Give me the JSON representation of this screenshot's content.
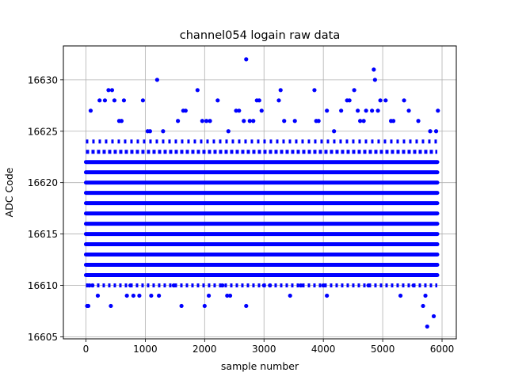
{
  "chart_data": {
    "type": "scatter",
    "title": "channel054 logain raw data",
    "xlabel": "sample number",
    "ylabel": "ADC Code",
    "xlim": [
      -380,
      6240
    ],
    "ylim": [
      16604.8,
      16633.3
    ],
    "xticks": [
      0,
      1000,
      2000,
      3000,
      4000,
      5000,
      6000
    ],
    "yticks": [
      16605,
      16610,
      16615,
      16620,
      16625,
      16630
    ],
    "grid": true,
    "marker_color": "#0000ff",
    "series": [
      {
        "points": [
          [
            20,
            16608
          ],
          [
            40,
            16608
          ],
          [
            60,
            16610
          ],
          [
            80,
            16627
          ],
          [
            110,
            16610
          ],
          [
            200,
            16609
          ],
          [
            230,
            16628
          ],
          [
            320,
            16628
          ],
          [
            380,
            16629
          ],
          [
            420,
            16608
          ],
          [
            440,
            16629
          ],
          [
            480,
            16628
          ],
          [
            560,
            16626
          ],
          [
            600,
            16626
          ],
          [
            640,
            16628
          ],
          [
            690,
            16609
          ],
          [
            750,
            16610
          ],
          [
            800,
            16609
          ],
          [
            900,
            16609
          ],
          [
            960,
            16628
          ],
          [
            1040,
            16625
          ],
          [
            1080,
            16625
          ],
          [
            1100,
            16609
          ],
          [
            1200,
            16630
          ],
          [
            1230,
            16609
          ],
          [
            1300,
            16625
          ],
          [
            1480,
            16610
          ],
          [
            1550,
            16626
          ],
          [
            1610,
            16608
          ],
          [
            1640,
            16627
          ],
          [
            1680,
            16627
          ],
          [
            1880,
            16629
          ],
          [
            1960,
            16626
          ],
          [
            2000,
            16608
          ],
          [
            2030,
            16626
          ],
          [
            2070,
            16609
          ],
          [
            2090,
            16626
          ],
          [
            2220,
            16628
          ],
          [
            2300,
            16610
          ],
          [
            2380,
            16609
          ],
          [
            2400,
            16625
          ],
          [
            2430,
            16609
          ],
          [
            2530,
            16627
          ],
          [
            2580,
            16627
          ],
          [
            2660,
            16626
          ],
          [
            2700,
            16608
          ],
          [
            2700,
            16632
          ],
          [
            2760,
            16626
          ],
          [
            2820,
            16626
          ],
          [
            2880,
            16628
          ],
          [
            2920,
            16628
          ],
          [
            2960,
            16627
          ],
          [
            3000,
            16610
          ],
          [
            3100,
            16610
          ],
          [
            3250,
            16628
          ],
          [
            3280,
            16629
          ],
          [
            3340,
            16626
          ],
          [
            3440,
            16609
          ],
          [
            3520,
            16626
          ],
          [
            3620,
            16610
          ],
          [
            3850,
            16629
          ],
          [
            3880,
            16626
          ],
          [
            3920,
            16626
          ],
          [
            4000,
            16610
          ],
          [
            4060,
            16627
          ],
          [
            4060,
            16609
          ],
          [
            4180,
            16625
          ],
          [
            4300,
            16627
          ],
          [
            4400,
            16628
          ],
          [
            4440,
            16628
          ],
          [
            4520,
            16629
          ],
          [
            4580,
            16627
          ],
          [
            4620,
            16626
          ],
          [
            4680,
            16626
          ],
          [
            4720,
            16627
          ],
          [
            4760,
            16610
          ],
          [
            4820,
            16627
          ],
          [
            4850,
            16631
          ],
          [
            4870,
            16630
          ],
          [
            4920,
            16627
          ],
          [
            4960,
            16628
          ],
          [
            5050,
            16628
          ],
          [
            5140,
            16626
          ],
          [
            5180,
            16626
          ],
          [
            5300,
            16609
          ],
          [
            5360,
            16628
          ],
          [
            5440,
            16627
          ],
          [
            5520,
            16610
          ],
          [
            5600,
            16626
          ],
          [
            5680,
            16608
          ],
          [
            5720,
            16609
          ],
          [
            5750,
            16606
          ],
          [
            5800,
            16625
          ],
          [
            5860,
            16607
          ],
          [
            5900,
            16625
          ],
          [
            5930,
            16627
          ]
        ]
      }
    ]
  }
}
